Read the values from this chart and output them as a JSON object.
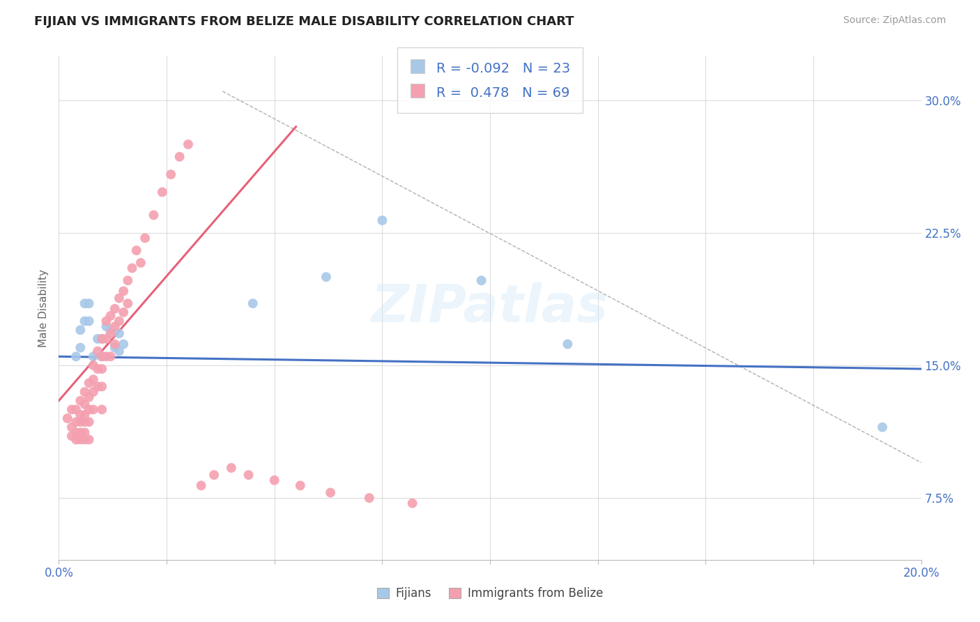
{
  "title": "FIJIAN VS IMMIGRANTS FROM BELIZE MALE DISABILITY CORRELATION CHART",
  "source_text": "Source: ZipAtlas.com",
  "ylabel": "Male Disability",
  "xlim": [
    0.0,
    0.2
  ],
  "ylim": [
    0.04,
    0.325
  ],
  "fijians_color": "#a8c8e8",
  "belize_color": "#f4a0b0",
  "fijians_line_color": "#4472c4",
  "belize_line_color": "#e8607a",
  "legend_R_fijians": "-0.092",
  "legend_N_fijians": "23",
  "legend_R_belize": "0.478",
  "legend_N_belize": "69",
  "yticks": [
    0.075,
    0.15,
    0.225,
    0.3
  ],
  "yticklabels": [
    "7.5%",
    "15.0%",
    "22.5%",
    "30.0%"
  ],
  "xtick_positions": [
    0.0,
    0.025,
    0.05,
    0.075,
    0.1,
    0.125,
    0.15,
    0.175,
    0.2
  ],
  "xticklabels": [
    "0.0%",
    "",
    "",
    "",
    "",
    "",
    "",
    "",
    "20.0%"
  ],
  "fijians_x": [
    0.004,
    0.005,
    0.005,
    0.006,
    0.006,
    0.007,
    0.007,
    0.008,
    0.009,
    0.01,
    0.01,
    0.011,
    0.012,
    0.013,
    0.014,
    0.014,
    0.015,
    0.045,
    0.062,
    0.075,
    0.098,
    0.118,
    0.191
  ],
  "fijians_y": [
    0.155,
    0.17,
    0.16,
    0.175,
    0.185,
    0.175,
    0.185,
    0.155,
    0.165,
    0.155,
    0.165,
    0.172,
    0.17,
    0.16,
    0.158,
    0.168,
    0.162,
    0.185,
    0.2,
    0.232,
    0.198,
    0.162,
    0.115
  ],
  "belize_x": [
    0.002,
    0.003,
    0.003,
    0.003,
    0.004,
    0.004,
    0.004,
    0.004,
    0.005,
    0.005,
    0.005,
    0.005,
    0.005,
    0.006,
    0.006,
    0.006,
    0.006,
    0.006,
    0.006,
    0.007,
    0.007,
    0.007,
    0.007,
    0.007,
    0.008,
    0.008,
    0.008,
    0.008,
    0.009,
    0.009,
    0.009,
    0.01,
    0.01,
    0.01,
    0.01,
    0.01,
    0.011,
    0.011,
    0.011,
    0.012,
    0.012,
    0.012,
    0.013,
    0.013,
    0.013,
    0.014,
    0.014,
    0.015,
    0.015,
    0.016,
    0.016,
    0.017,
    0.018,
    0.019,
    0.02,
    0.022,
    0.024,
    0.026,
    0.028,
    0.03,
    0.033,
    0.036,
    0.04,
    0.044,
    0.05,
    0.056,
    0.063,
    0.072,
    0.082
  ],
  "belize_y": [
    0.12,
    0.125,
    0.115,
    0.11,
    0.125,
    0.118,
    0.112,
    0.108,
    0.13,
    0.122,
    0.118,
    0.112,
    0.108,
    0.135,
    0.128,
    0.122,
    0.118,
    0.112,
    0.108,
    0.14,
    0.132,
    0.125,
    0.118,
    0.108,
    0.15,
    0.142,
    0.135,
    0.125,
    0.158,
    0.148,
    0.138,
    0.165,
    0.155,
    0.148,
    0.138,
    0.125,
    0.175,
    0.165,
    0.155,
    0.178,
    0.168,
    0.155,
    0.182,
    0.172,
    0.162,
    0.188,
    0.175,
    0.192,
    0.18,
    0.198,
    0.185,
    0.205,
    0.215,
    0.208,
    0.222,
    0.235,
    0.248,
    0.258,
    0.268,
    0.275,
    0.082,
    0.088,
    0.092,
    0.088,
    0.085,
    0.082,
    0.078,
    0.075,
    0.072
  ],
  "fijians_trend": [
    0.155,
    0.148
  ],
  "belize_trend_x": [
    0.0,
    0.055
  ],
  "belize_trend_y": [
    0.13,
    0.285
  ],
  "dashed_line_x": [
    0.038,
    0.2
  ],
  "dashed_line_y": [
    0.305,
    0.095
  ]
}
